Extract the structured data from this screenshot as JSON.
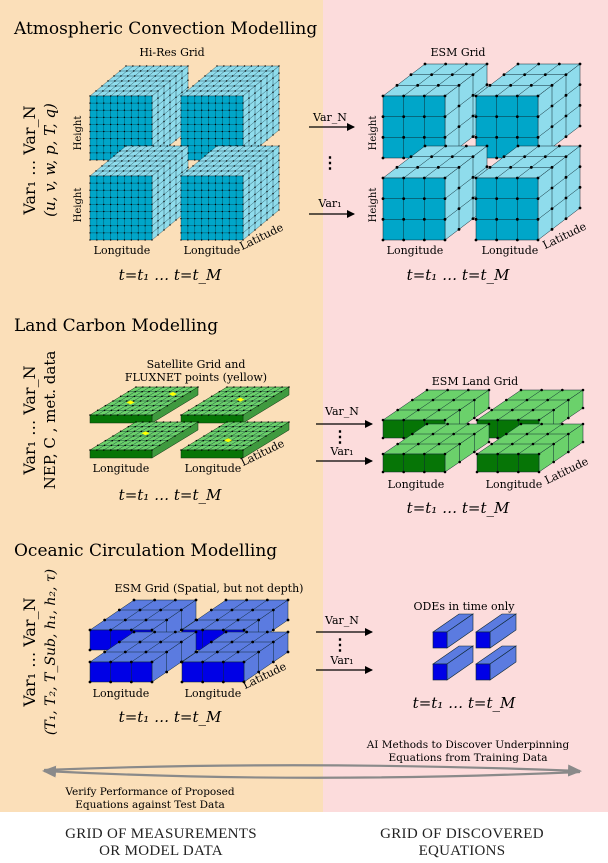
{
  "sections": [
    {
      "title": "Atmospheric Convection Modelling",
      "vars_line1": "Var₁ … Var_N",
      "vars_line2": "(u, v, w, p, T, q)",
      "left_grid_label": "Hi-Res Grid",
      "right_grid_label": "ESM Grid",
      "arrow_top": "Var_N",
      "arrow_bottom": "Var₁",
      "axis_height": "Height",
      "axis_longitude": "Longitude",
      "axis_latitude": "Latitude",
      "time": "t=t₁ … t=t_M"
    },
    {
      "title": "Land Carbon Modelling",
      "vars_line1": "Var₁ … Var_N",
      "vars_line2": "NEP, C , met. data",
      "left_grid_label_1": "Satellite Grid and",
      "left_grid_label_2": "FLUXNET points (yellow)",
      "right_grid_label": "ESM Land Grid",
      "arrow_top": "Var_N",
      "arrow_bottom": "Var₁",
      "axis_longitude": "Longitude",
      "axis_latitude": "Latitude",
      "time": "t=t₁ … t=t_M"
    },
    {
      "title": "Oceanic Circulation Modelling",
      "vars_line1": "Var₁ … Var_N",
      "vars_line2": "(T₁, T₂, T_Sub, h₁, h₂, τ)",
      "left_grid_label": "ESM Grid (Spatial, but not depth)",
      "right_grid_label": "ODEs in time only",
      "arrow_top": "Var_N",
      "arrow_bottom": "Var₁",
      "axis_longitude": "Longitude",
      "axis_latitude": "Latitude",
      "time": "t=t₁ … t=t_M"
    }
  ],
  "loop": {
    "top_line_1": "AI Methods to Discover Underpinning",
    "top_line_2": "Equations from Training Data",
    "bottom_line_1": "Verify Performance of Proposed",
    "bottom_line_2": "Equations against Test Data"
  },
  "footer": {
    "left_line_1": "GRID OF MEASUREMENTS",
    "left_line_2": "OR MODEL DATA",
    "right_line_1": "GRID OF DISCOVERED",
    "right_line_2": "EQUATIONS"
  },
  "colors": {
    "left_panel": "#fbdfb9",
    "right_panel": "#fcdcdc",
    "atmos_front": "#00a6c9",
    "atmos_side": "#8fdcec",
    "land_front": "#067506",
    "land_top": "#6bd16b",
    "land_point": "#ffff00",
    "ocean_front": "#0000e6",
    "ocean_side": "#5b7be0"
  }
}
